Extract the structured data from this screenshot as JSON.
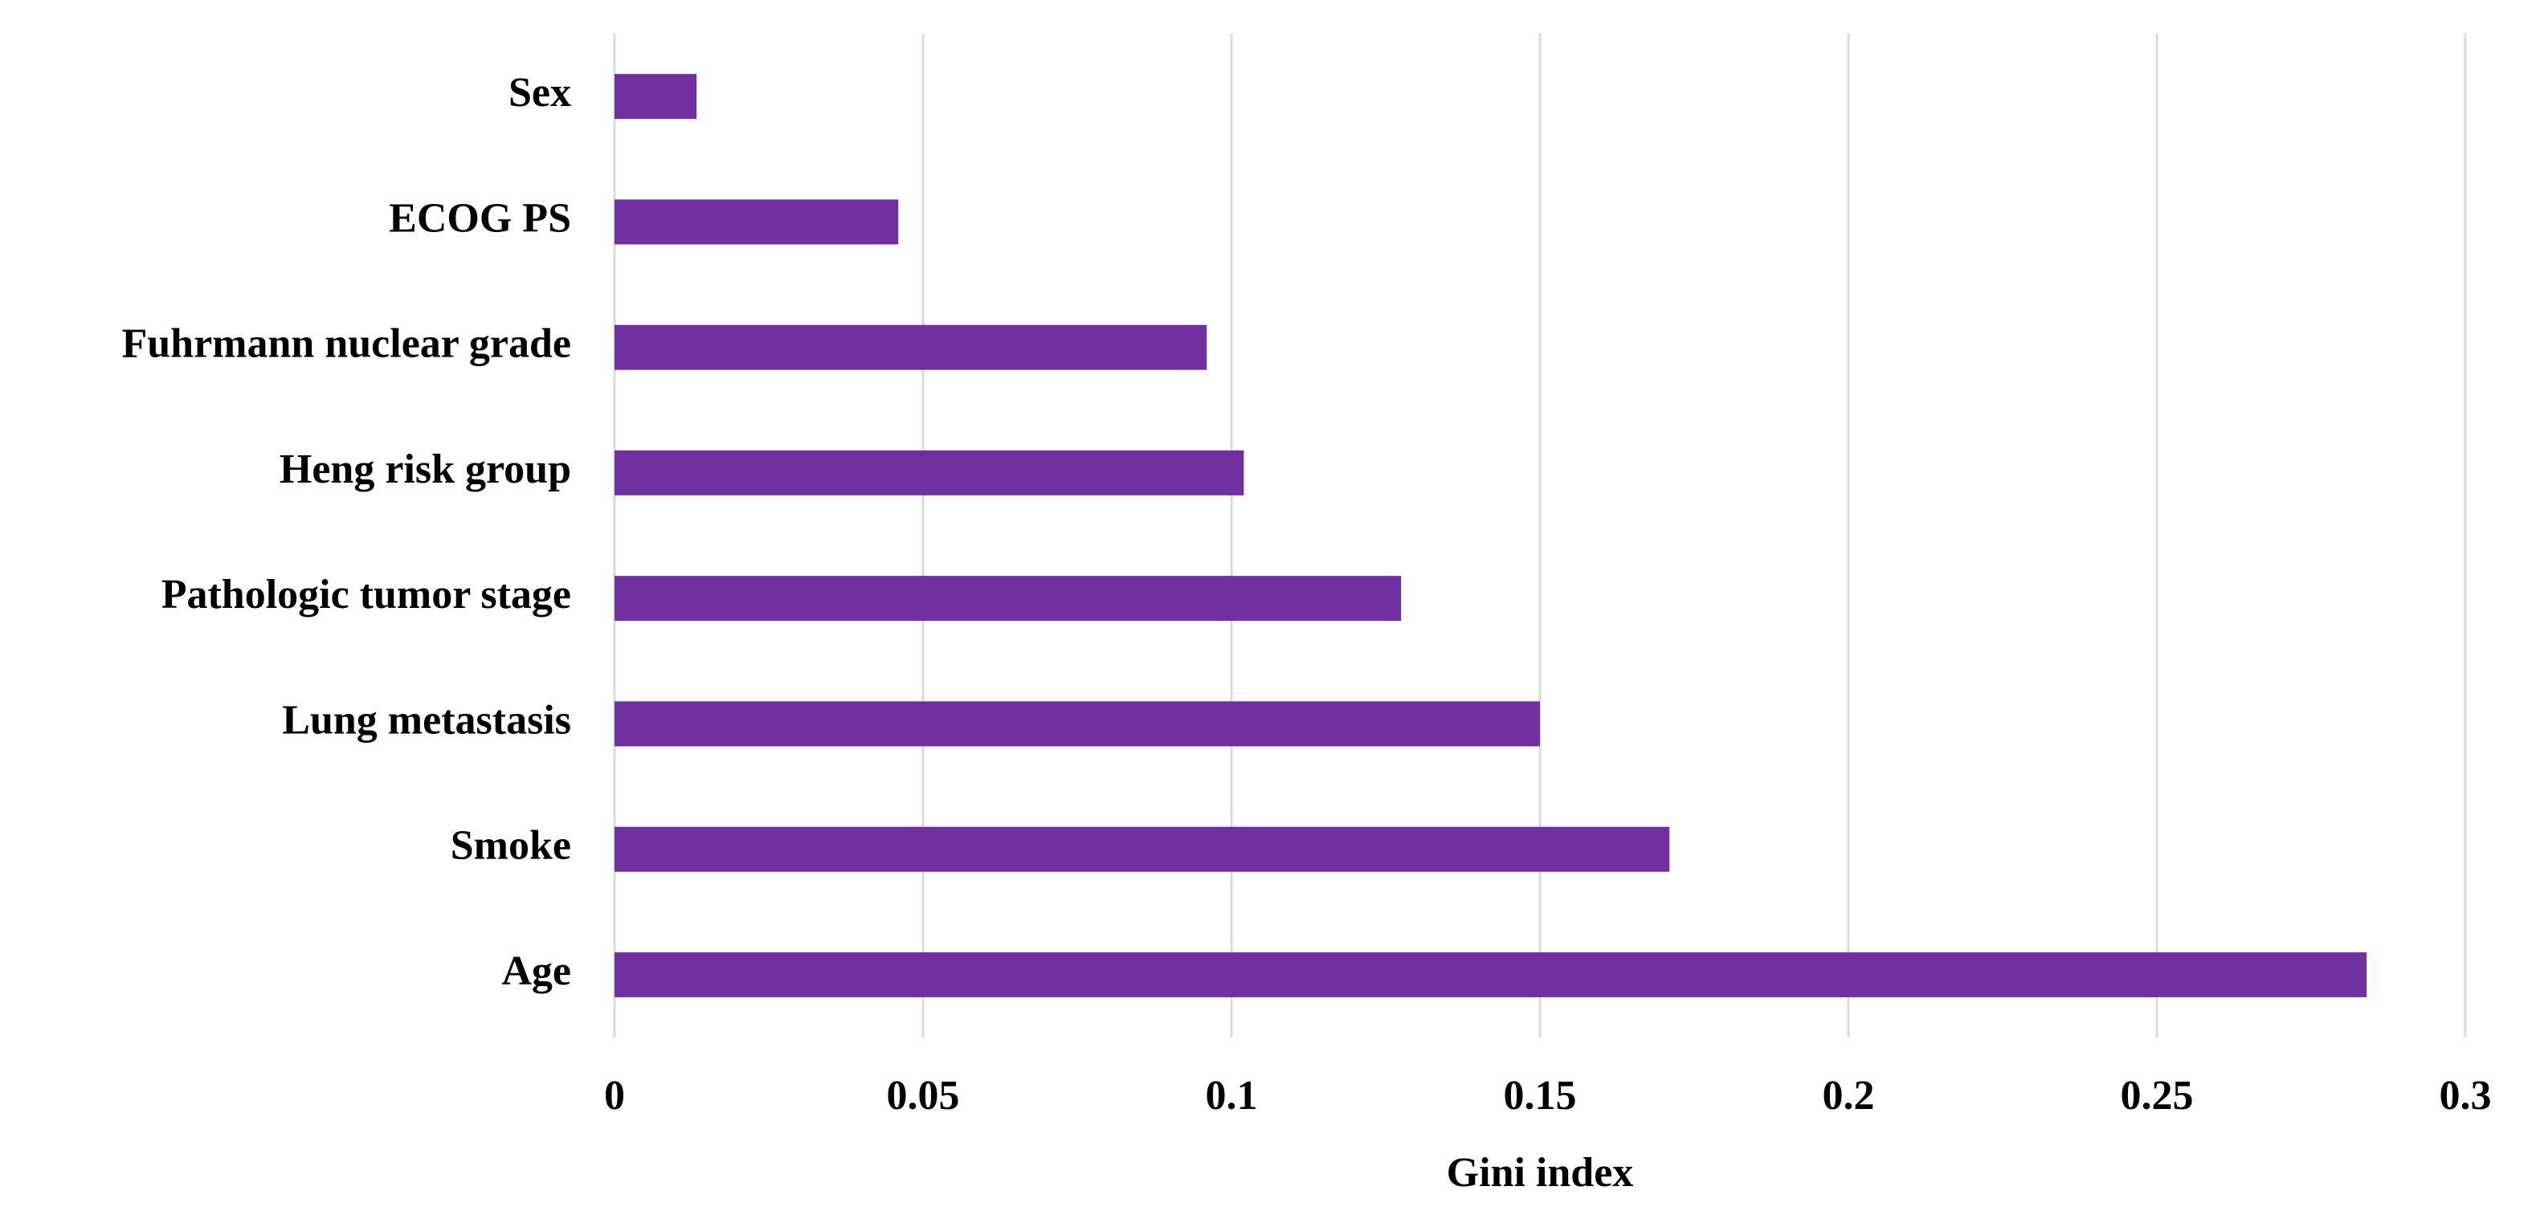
{
  "chart_data": {
    "type": "bar",
    "orientation": "horizontal",
    "categories": [
      "Sex",
      "ECOG PS",
      "Fuhrmann nuclear grade",
      "Heng risk group",
      "Pathologic tumor stage",
      "Lung metastasis",
      "Smoke",
      "Age"
    ],
    "values": [
      0.0133,
      0.046,
      0.096,
      0.102,
      0.1275,
      0.15,
      0.171,
      0.284
    ],
    "color": "#7030a0",
    "x_label": "Gini index",
    "xlim": [
      0,
      0.3
    ],
    "xticks": [
      0,
      0.05,
      0.1,
      0.15,
      0.2,
      0.25,
      0.3
    ],
    "grid": true
  }
}
